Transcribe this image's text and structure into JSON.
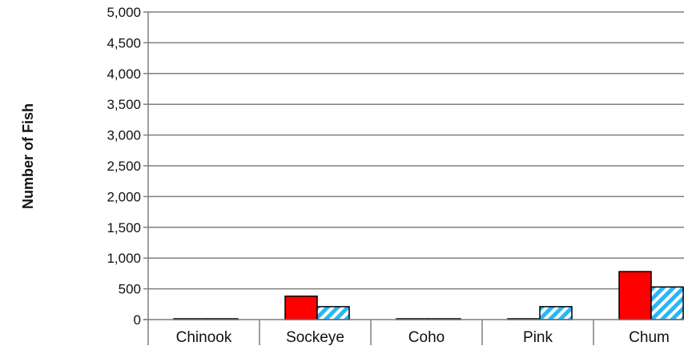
{
  "chart_data": {
    "type": "bar",
    "ylabel": "Number of Fish",
    "xlabel": "",
    "categories": [
      "Chinook",
      "Sockeye",
      "Coho",
      "Pink",
      "Chum"
    ],
    "ylim": [
      0,
      5000
    ],
    "yticks": [
      0,
      500,
      1000,
      1500,
      2000,
      2500,
      3000,
      3500,
      4000,
      4500,
      5000
    ],
    "ytick_labels": [
      "0",
      "500",
      "1,000",
      "1,500",
      "2,000",
      "2,500",
      "3,000",
      "3,500",
      "4,000",
      "4,500",
      "5,000"
    ],
    "grid": true,
    "series": [
      {
        "values": [
          5,
          380,
          5,
          5,
          780
        ],
        "color": "#ff0000",
        "pattern": "solid"
      },
      {
        "values": [
          5,
          210,
          5,
          210,
          530
        ],
        "color": "#29b6f6",
        "pattern": "diagonal-hatch"
      }
    ]
  }
}
